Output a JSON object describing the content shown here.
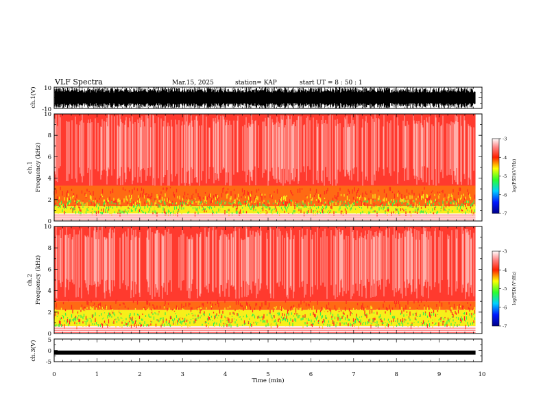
{
  "header": {
    "title": "VLF Spectra",
    "date": "Mar.15, 2025",
    "station": "station= KAP",
    "start": "start  UT =   8  : 50 : 1"
  },
  "chart_data": [
    {
      "type": "line",
      "panel": "ch1-waveform",
      "ylabel": "ch.1(V)",
      "ylim": [
        -10,
        10
      ],
      "yticks": [
        "10",
        "-10"
      ],
      "x": [
        0,
        10
      ],
      "signal": "dense noisy waveform, amplitude about ±10 V"
    },
    {
      "type": "heatmap",
      "panel": "ch1-spectrogram",
      "ylabel": "ch.1\nFrequency  (kHz)",
      "ylim": [
        0,
        10
      ],
      "yticks": [
        "0",
        "2",
        "4",
        "6",
        "8",
        "10"
      ],
      "xlim": [
        0,
        9.85
      ],
      "colorbar": {
        "range": [
          -7,
          -3
        ],
        "ticks": [
          "-3",
          "-4",
          "-5",
          "-6",
          "-7"
        ],
        "label": "log(PSD)(V²/Hz)"
      },
      "bands": [
        {
          "f": [
            0.7,
            1.4
          ],
          "level": -4.9
        },
        {
          "f": [
            1.4,
            3.3
          ],
          "level": -4.3
        },
        {
          "f": [
            3.3,
            10
          ],
          "level": -3.6
        }
      ]
    },
    {
      "type": "heatmap",
      "panel": "ch2-spectrogram",
      "ylabel": "ch.2\nFrequency  (kHz)",
      "ylim": [
        0,
        10
      ],
      "yticks": [
        "0",
        "2",
        "4",
        "6",
        "8",
        "10"
      ],
      "xlim": [
        0,
        9.85
      ],
      "colorbar": {
        "range": [
          -7,
          -3
        ],
        "ticks": [
          "-3",
          "-4",
          "-5",
          "-6",
          "-7"
        ],
        "label": "log(PSD)(V²/Hz)"
      },
      "bands": [
        {
          "f": [
            0.7,
            2.2
          ],
          "level": -5.0
        },
        {
          "f": [
            2.2,
            3.0
          ],
          "level": -4.4
        },
        {
          "f": [
            3.0,
            10
          ],
          "level": -3.6
        }
      ]
    },
    {
      "type": "line",
      "panel": "ch3-waveform",
      "ylabel": "ch.3(V)",
      "ylim": [
        -5,
        5
      ],
      "yticks": [
        "5",
        "0",
        "-5"
      ],
      "x": [
        0,
        9.85
      ],
      "signal": "flat thick band at about -1 V"
    }
  ],
  "xaxis": {
    "label": "Time  (min)",
    "ticks": [
      "0",
      "1",
      "2",
      "3",
      "4",
      "5",
      "6",
      "7",
      "8",
      "9",
      "10"
    ],
    "range": [
      0,
      10
    ]
  },
  "colors": {
    "background": "#ffffff",
    "noise_red": "#ff2a1e",
    "band_yellow": "#f7ef1a",
    "band_green": "#3cee4c"
  }
}
